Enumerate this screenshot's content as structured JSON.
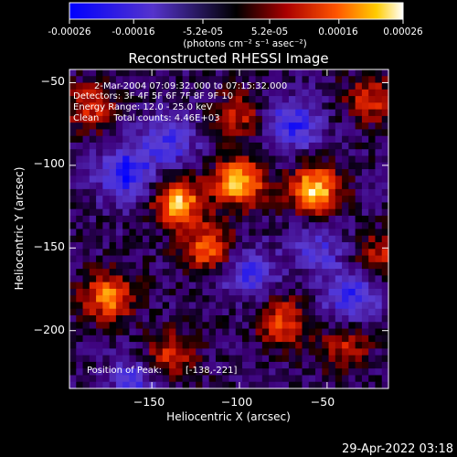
{
  "chart_data": {
    "type": "heatmap",
    "title": "Reconstructed RHESSI Image",
    "colorbar": {
      "ticks": [
        "-0.00026",
        "-0.00016",
        "-5.2e-05",
        "5.2e-05",
        "0.00016",
        "0.00026"
      ],
      "tick_values": [
        -0.00026,
        -0.00016,
        -5.2e-05,
        5.2e-05,
        0.00016,
        0.00026
      ],
      "range": [
        -0.00026,
        0.00026
      ],
      "units_label": "(photons cm⁻² s⁻¹ asec⁻²)"
    },
    "xlabel": "Heliocentric X (arcsec)",
    "ylabel": "Heliocentric Y (arcsec)",
    "xlim": [
      -197,
      -15
    ],
    "ylim": [
      -235,
      -42
    ],
    "xticks": [
      -150,
      -100,
      -50
    ],
    "xtick_labels": [
      "−150",
      "−100",
      "−50"
    ],
    "yticks": [
      -50,
      -100,
      -150,
      -200
    ],
    "ytick_labels": [
      "−50",
      "−100",
      "−150",
      "−200"
    ],
    "annotations": [
      "2-Mar-2004 07:09:32.000 to 07:15:32.000",
      "Detectors: 3F 4F 5F 6F 7F 8F 9F 10",
      "Energy Range: 12.0 - 25.0 keV",
      "Clean     Total counts: 4.46E+03"
    ],
    "position_label": "Position of Peak:",
    "position_value": "[-138,-221]",
    "peak": {
      "x": -138,
      "y": -221
    },
    "hotspots": [
      {
        "x": -135,
        "y": -122,
        "intensity": 0.9
      },
      {
        "x": -100,
        "y": -110,
        "intensity": 0.95
      },
      {
        "x": -57,
        "y": -115,
        "intensity": 1.0
      },
      {
        "x": -118,
        "y": -150,
        "intensity": 0.7
      },
      {
        "x": -175,
        "y": -180,
        "intensity": 0.75
      },
      {
        "x": -75,
        "y": -195,
        "intensity": 0.6
      },
      {
        "x": -40,
        "y": -210,
        "intensity": 0.45
      },
      {
        "x": -25,
        "y": -60,
        "intensity": 0.5
      },
      {
        "x": -185,
        "y": -65,
        "intensity": 0.5
      },
      {
        "x": -100,
        "y": -70,
        "intensity": 0.45
      },
      {
        "x": -140,
        "y": -215,
        "intensity": 0.55
      },
      {
        "x": -20,
        "y": -155,
        "intensity": 0.45
      }
    ],
    "coldspots": [
      {
        "x": -165,
        "y": -105,
        "intensity": 0.8
      },
      {
        "x": -70,
        "y": -75,
        "intensity": 0.7
      },
      {
        "x": -140,
        "y": -85,
        "intensity": 0.6
      },
      {
        "x": -35,
        "y": -180,
        "intensity": 0.7
      },
      {
        "x": -95,
        "y": -165,
        "intensity": 0.55
      },
      {
        "x": -160,
        "y": -230,
        "intensity": 0.5
      },
      {
        "x": -55,
        "y": -150,
        "intensity": 0.45
      }
    ]
  },
  "footer": {
    "timestamp": "29-Apr-2022 03:18"
  }
}
